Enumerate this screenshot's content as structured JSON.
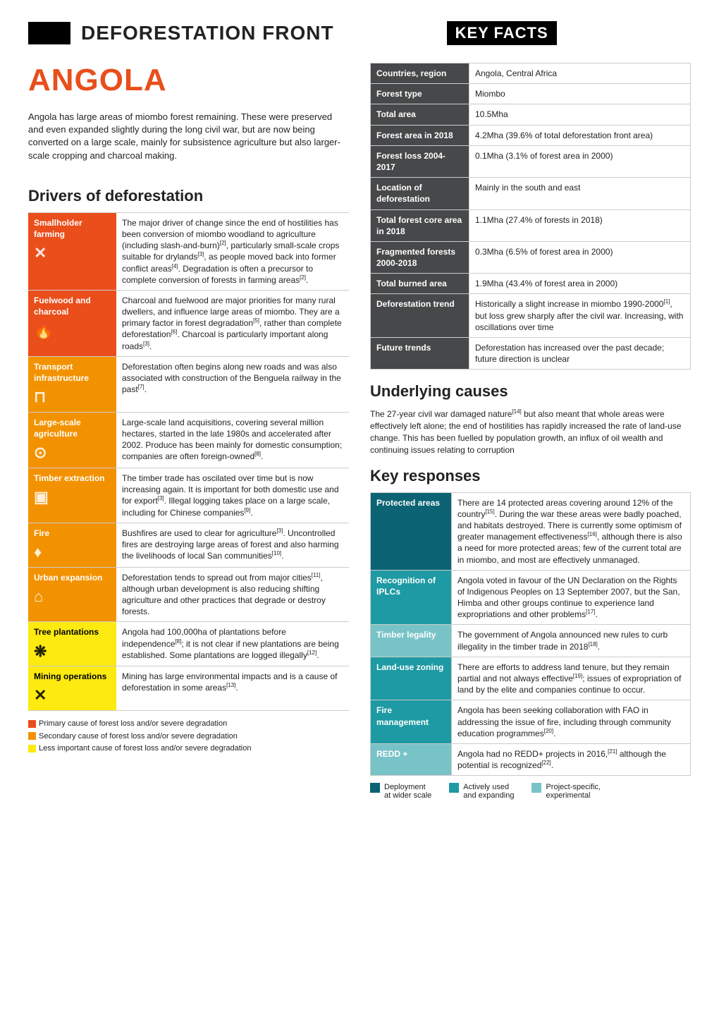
{
  "header": {
    "title": "DEFORESTATION FRONT",
    "badge": "KEY FACTS"
  },
  "country": "ANGOLA",
  "intro": "Angola has large areas of miombo forest remaining. These were preserved and even expanded slightly during the long civil war, but are now being converted on a large scale, mainly for subsistence agriculture but also larger-scale cropping and charcoal making.",
  "drivers_title": "Drivers of deforestation",
  "colors": {
    "primary": "#e94e1b",
    "secondary": "#f39200",
    "tertiary": "#fcea10",
    "dark": "#474849",
    "resp_dark": "#0b6374",
    "resp_mid": "#1d9aa3",
    "resp_light": "#78c3c8"
  },
  "drivers": [
    {
      "label": "Smallholder farming",
      "color": "#e94e1b",
      "icon": "✕",
      "text": "The major driver of change since the end of hostilities has been conversion of miombo woodland to agriculture (including slash-and-burn)[2], particularly small-scale crops suitable for drylands[3], as people moved back into former conflict areas[4]. Degradation is often a precursor to complete conversion of forests in farming areas[2]."
    },
    {
      "label": "Fuelwood and charcoal",
      "color": "#e94e1b",
      "icon": "🔥",
      "text": "Charcoal and fuelwood are major priorities for many rural dwellers, and influence large areas of miombo. They are a primary factor in forest degradation[5], rather than complete deforestation[6]. Charcoal is particularly important along roads[3]."
    },
    {
      "label": "Transport infrastructure",
      "color": "#f39200",
      "icon": "⊓",
      "text": "Deforestation often begins along new roads and was also associated with construction of the Benguela railway in the past[7]."
    },
    {
      "label": "Large-scale agriculture",
      "color": "#f39200",
      "icon": "⊙",
      "text": "Large-scale land acquisitions, covering several million hectares, started in the late 1980s and accelerated after 2002. Produce has been mainly for domestic consumption; companies are often foreign-owned[8]."
    },
    {
      "label": "Timber extraction",
      "color": "#f39200",
      "icon": "▣",
      "text": "The timber trade has oscilated over time but is now increasing again. It is important for both domestic use and for export[3]. Illegal logging takes place on a large scale, including for Chinese companies[9]."
    },
    {
      "label": "Fire",
      "color": "#f39200",
      "icon": "♦",
      "text": "Bushfires are used to clear for agriculture[3]. Uncontrolled fires are destroying large areas of forest and also harming the livelihoods of local San communities[10]."
    },
    {
      "label": "Urban expansion",
      "color": "#f39200",
      "icon": "⌂",
      "text": "Deforestation tends to spread out from major cities[11], although urban development is also reducing shifting agriculture and other practices that degrade or destroy forests."
    },
    {
      "label": "Tree plantations",
      "color": "#fcea10",
      "icon": "❋",
      "text": "Angola had 100,000ha of plantations before independence[8]; it is not clear if new plantations are being established. Some plantations are logged illegally[12]."
    },
    {
      "label": "Mining operations",
      "color": "#fcea10",
      "icon": "✕",
      "text": "Mining has large environmental impacts and is a cause of deforestation in some areas[13]."
    }
  ],
  "driver_legend": [
    {
      "color": "#e94e1b",
      "text": "Primary cause of forest loss and/or severe degradation"
    },
    {
      "color": "#f39200",
      "text": "Secondary cause of forest loss and/or severe degradation"
    },
    {
      "color": "#fcea10",
      "text": "Less important cause of forest loss and/or severe degradation"
    }
  ],
  "facts": [
    {
      "label": "Countries, region",
      "value": "Angola, Central Africa"
    },
    {
      "label": "Forest type",
      "value": "Miombo"
    },
    {
      "label": "Total area",
      "value": "10.5Mha"
    },
    {
      "label": "Forest area in 2018",
      "value": "4.2Mha (39.6% of total deforestation front area)"
    },
    {
      "label": "Forest loss 2004-2017",
      "value": "0.1Mha (3.1% of forest area in 2000)"
    },
    {
      "label": "Location of deforestation",
      "value": "Mainly in the south and east"
    },
    {
      "label": "Total forest core area in 2018",
      "value": "1.1Mha (27.4% of forests in 2018)"
    },
    {
      "label": "Fragmented forests 2000-2018",
      "value": "0.3Mha (6.5% of forest area in 2000)"
    },
    {
      "label": "Total burned area",
      "value": "1.9Mha (43.4% of forest area in 2000)"
    },
    {
      "label": "Deforestation trend",
      "value": "Historically a slight increase in miombo 1990-2000[1], but loss grew sharply after the civil war. Increasing, with oscillations over time"
    },
    {
      "label": "Future trends",
      "value": "Deforestation has increased over the past decade; future direction is unclear"
    }
  ],
  "underlying_title": "Underlying causes",
  "underlying_text": "The 27-year civil war damaged nature[14] but also meant that whole areas were effectively left alone; the end of hostilities has rapidly increased the rate of land-use change. This has been fuelled by population growth, an influx of oil wealth and continuing issues relating to corruption",
  "responses_title": "Key responses",
  "responses": [
    {
      "label": "Protected areas",
      "color": "#0b6374",
      "text": "There are 14 protected areas covering around 12% of the country[15]. During the war these areas were badly poached, and habitats destroyed. There is currently some optimism of greater management effectiveness[16], although there is also a need for more protected areas; few of the current total are in miombo, and most are effectively unmanaged."
    },
    {
      "label": "Recognition of IPLCs",
      "color": "#1d9aa3",
      "text": "Angola voted in favour of the UN Declaration on the Rights of Indigenous Peoples on 13 September 2007, but the San, Himba and other groups continue to experience land expropriations and other problems[17]."
    },
    {
      "label": "Timber legality",
      "color": "#78c3c8",
      "text": "The government of Angola announced new rules to curb illegality in the timber trade in 2018[18]."
    },
    {
      "label": "Land-use zoning",
      "color": "#1d9aa3",
      "text": "There are efforts to address land tenure, but they remain partial and not always effective[19]; issues of expropriation of land by the elite and companies continue to occur."
    },
    {
      "label": "Fire management",
      "color": "#1d9aa3",
      "text": "Angola has been seeking collaboration with FAO in addressing the issue of fire, including through community education programmes[20]."
    },
    {
      "label": "REDD +",
      "color": "#78c3c8",
      "text": "Angola had no REDD+ projects in 2016,[21] although the potential is recognized[22]."
    }
  ],
  "resp_legend": [
    {
      "color": "#0b6374",
      "text1": "Deployment",
      "text2": "at wider scale"
    },
    {
      "color": "#1d9aa3",
      "text1": "Actively used",
      "text2": "and expanding"
    },
    {
      "color": "#78c3c8",
      "text1": "Project-specific,",
      "text2": "experimental"
    }
  ]
}
